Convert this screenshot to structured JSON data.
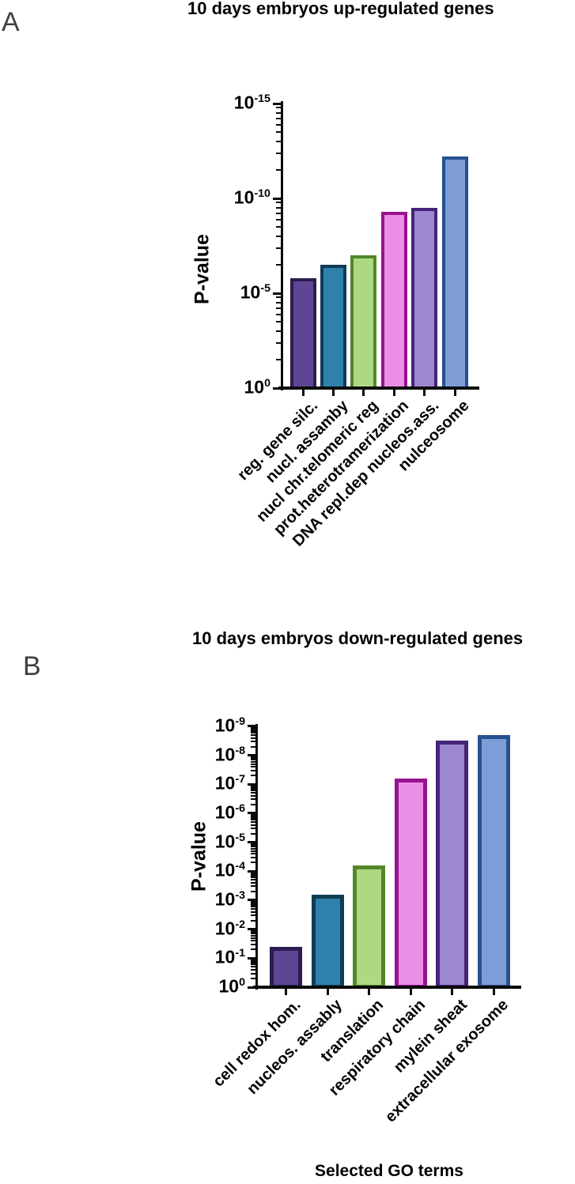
{
  "figure": {
    "kind": "two-panel GO-term enrichment bar figure"
  },
  "panels": [
    {
      "letter": "A",
      "title": "10 days embryos up-regulated genes"
    },
    {
      "letter": "B",
      "title": "10 days embryos down-regulated genes"
    }
  ],
  "chart_data": [
    {
      "type": "bar",
      "title": "10 days embryos up-regulated genes",
      "xlabel": "",
      "ylabel": "P-value",
      "y_scale": "log10, inverted (smaller p higher)",
      "ylim_exponents": [
        0,
        -15
      ],
      "ytick_exponents": [
        0,
        -5,
        -10,
        -15
      ],
      "categories": [
        "reg. gene silc.",
        "nucl. assamby",
        "nucl chr.telomeric reg",
        "prot.heterotramerization",
        "DNA repl.dep nucleos.ass.",
        "nulceosome"
      ],
      "neg_log10_p_values": [
        5.8,
        6.5,
        7.0,
        9.3,
        9.5,
        12.2
      ],
      "bar_fill_colors": [
        "#5D4693",
        "#2E81AB",
        "#AED884",
        "#EB8EE5",
        "#9D87D0",
        "#7E9CD6"
      ],
      "bar_edge_colors": [
        "#2C1C4F",
        "#0F3D53",
        "#538629",
        "#97138F",
        "#432478",
        "#275090"
      ],
      "legend": "none",
      "grid": false
    },
    {
      "type": "bar",
      "title": "10 days embryos down-regulated genes",
      "xlabel": "Selected GO terms",
      "ylabel": "P-value",
      "y_scale": "log10, inverted (smaller p higher)",
      "ylim_exponents": [
        0,
        -9
      ],
      "ytick_exponents": [
        0,
        -1,
        -2,
        -3,
        -4,
        -5,
        -6,
        -7,
        -8,
        -9
      ],
      "categories": [
        "cell redox hom.",
        "nucleos. assably",
        "translation",
        "respiratory chain",
        "mylein sheat",
        "extracellular exosome"
      ],
      "neg_log10_p_values": [
        1.4,
        3.2,
        4.2,
        7.2,
        8.5,
        8.7
      ],
      "bar_fill_colors": [
        "#5D4693",
        "#2E81AB",
        "#AED884",
        "#EB8EE5",
        "#9D87D0",
        "#7E9CD6"
      ],
      "bar_edge_colors": [
        "#2C1C4F",
        "#0F3D53",
        "#538629",
        "#97138F",
        "#432478",
        "#275090"
      ],
      "legend": "none",
      "grid": false
    }
  ],
  "colors": {
    "axis": "#0a0a0a",
    "text": "#000000",
    "panel_letter": "#3f3f3f",
    "background": "#ffffff"
  }
}
